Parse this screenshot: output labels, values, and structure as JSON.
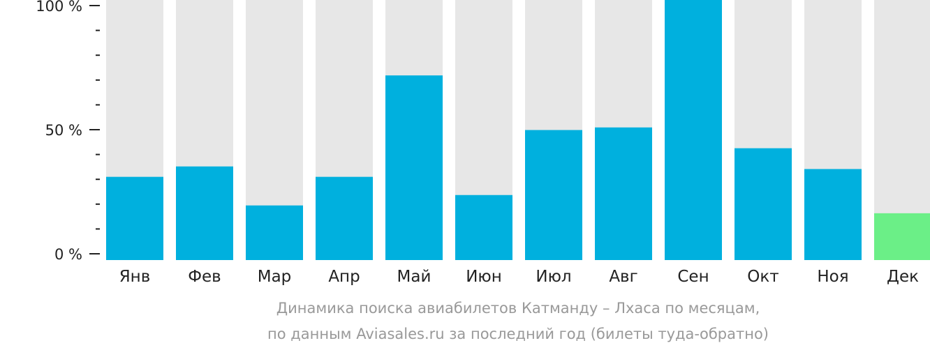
{
  "chart_data": {
    "type": "bar",
    "categories": [
      "Янв",
      "Фев",
      "Мар",
      "Апр",
      "Май",
      "Июн",
      "Июл",
      "Авг",
      "Сен",
      "Окт",
      "Ноя",
      "Дек"
    ],
    "values": [
      32,
      36,
      21,
      32,
      71,
      25,
      50,
      51,
      100,
      43,
      35,
      18
    ],
    "highlight_index": 11,
    "ylim": [
      0,
      100
    ],
    "yticks": [
      {
        "value": 0,
        "label": "0 %"
      },
      {
        "value": 50,
        "label": "50 %"
      },
      {
        "value": 100,
        "label": "100 %"
      }
    ],
    "minor_tick_step": 10,
    "colors": {
      "bar": "#00b0de",
      "highlight": "#6bef87",
      "background_bar": "#e7e7e7",
      "axis": "#222222"
    },
    "caption_line1": "Динамика поиска авиабилетов Катманду – Лхаса по месяцам,",
    "caption_line2": "по данным Aviasales.ru за последний год (билеты туда-обратно)"
  }
}
